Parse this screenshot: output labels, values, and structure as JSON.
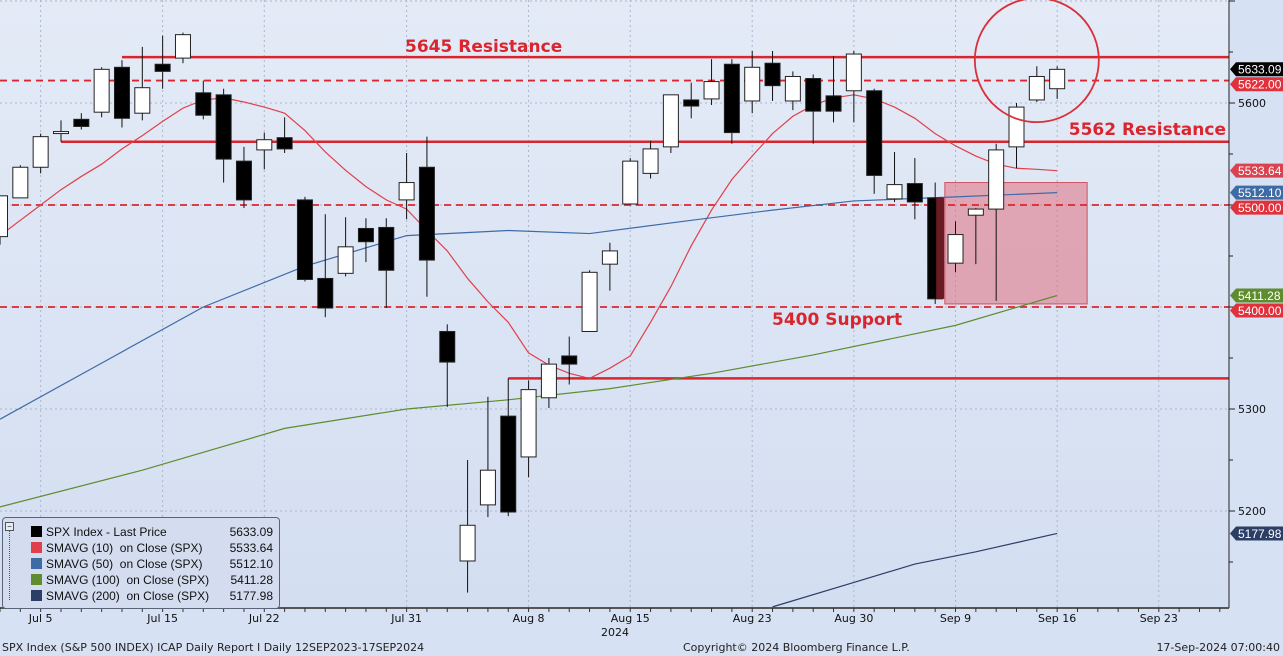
{
  "chart_data": {
    "type": "candlestick",
    "title": "",
    "ylim": [
      5100,
      5700
    ],
    "y_axis_side": "right",
    "y_ticks": [
      5200,
      5300,
      5600
    ],
    "grid": true,
    "x_tick_labels": [
      {
        "date": "Jul 5",
        "index": 2
      },
      {
        "date": "Jul 15",
        "index": 8
      },
      {
        "date": "Jul 22",
        "index": 13
      },
      {
        "date": "Jul 31",
        "index": 20
      },
      {
        "date": "Aug 8",
        "index": 26
      },
      {
        "date": "Aug 15",
        "index": 31
      },
      {
        "date": "Aug 23",
        "index": 37
      },
      {
        "date": "Aug 30",
        "index": 42
      },
      {
        "date": "Sep 9",
        "index": 47
      },
      {
        "date": "Sep 16",
        "index": 52
      },
      {
        "date": "Sep 23",
        "index": 57
      }
    ],
    "year_label": "2024",
    "candles": [
      [
        "Jul 2",
        5469,
        5509,
        5461,
        5509
      ],
      [
        "Jul 3",
        5507,
        5539,
        5507,
        5537
      ],
      [
        "Jul 5",
        5537,
        5570,
        5531,
        5567
      ],
      [
        "Jul 8",
        5572,
        5583,
        5562,
        5572
      ],
      [
        "Jul 9",
        5584,
        5590,
        5574,
        5577
      ],
      [
        "Jul 10",
        5591,
        5635,
        5586,
        5633
      ],
      [
        "Jul 11",
        5635,
        5642,
        5576,
        5585
      ],
      [
        "Jul 12",
        5590,
        5655,
        5583,
        5615
      ],
      [
        "Jul 15",
        5638,
        5666,
        5614,
        5631
      ],
      [
        "Jul 16",
        5644,
        5669,
        5639,
        5667
      ],
      [
        "Jul 17",
        5610,
        5622,
        5584,
        5588
      ],
      [
        "Jul 18",
        5608,
        5614,
        5522,
        5545
      ],
      [
        "Jul 19",
        5543,
        5557,
        5497,
        5505
      ],
      [
        "Jul 22",
        5554,
        5571,
        5535,
        5564
      ],
      [
        "Jul 23",
        5566,
        5586,
        5551,
        5555
      ],
      [
        "Jul 24",
        5505,
        5508,
        5425,
        5427
      ],
      [
        "Jul 25",
        5428,
        5491,
        5390,
        5399
      ],
      [
        "Jul 26",
        5433,
        5488,
        5430,
        5459
      ],
      [
        "Jul 29",
        5477,
        5487,
        5444,
        5464
      ],
      [
        "Jul 30",
        5478,
        5487,
        5399,
        5436
      ],
      [
        "Jul 31",
        5505,
        5551,
        5486,
        5522
      ],
      [
        "Aug 1",
        5537,
        5567,
        5410,
        5446
      ],
      [
        "Aug 2",
        5376,
        5383,
        5302,
        5346
      ],
      [
        "Aug 5",
        5151,
        5250,
        5120,
        5186
      ],
      [
        "Aug 6",
        5206,
        5312,
        5194,
        5240
      ],
      [
        "Aug 7",
        5293,
        5330,
        5195,
        5199
      ],
      [
        "Aug 8",
        5253,
        5328,
        5233,
        5319
      ],
      [
        "Aug 9",
        5311,
        5350,
        5301,
        5344
      ],
      [
        "Aug 12",
        5352,
        5371,
        5324,
        5344
      ],
      [
        "Aug 13",
        5376,
        5436,
        5376,
        5434
      ],
      [
        "Aug 14",
        5442,
        5463,
        5416,
        5455
      ],
      [
        "Aug 15",
        5501,
        5546,
        5501,
        5543
      ],
      [
        "Aug 16",
        5531,
        5563,
        5526,
        5555
      ],
      [
        "Aug 19",
        5557,
        5608,
        5551,
        5608
      ],
      [
        "Aug 20",
        5603,
        5620,
        5585,
        5597
      ],
      [
        "Aug 21",
        5604,
        5643,
        5598,
        5621
      ],
      [
        "Aug 22",
        5638,
        5643,
        5560,
        5571
      ],
      [
        "Aug 23",
        5602,
        5651,
        5590,
        5635
      ],
      [
        "Aug 26",
        5639,
        5651,
        5602,
        5617
      ],
      [
        "Aug 27",
        5602,
        5631,
        5593,
        5626
      ],
      [
        "Aug 28",
        5624,
        5628,
        5560,
        5592
      ],
      [
        "Aug 29",
        5607,
        5646,
        5581,
        5592
      ],
      [
        "Aug 30",
        5612,
        5651,
        5581,
        5648
      ],
      [
        "Sep 3",
        5612,
        5614,
        5511,
        5529
      ],
      [
        "Sep 4",
        5506,
        5552,
        5503,
        5520
      ],
      [
        "Sep 5",
        5521,
        5546,
        5486,
        5503
      ],
      [
        "Sep 6",
        5507,
        5522,
        5403,
        5408
      ],
      [
        "Sep 9",
        5443,
        5484,
        5434,
        5471
      ],
      [
        "Sep 10",
        5490,
        5497,
        5442,
        5496
      ],
      [
        "Sep 11",
        5496,
        5560,
        5406,
        5554
      ],
      [
        "Sep 12",
        5557,
        5600,
        5536,
        5596
      ],
      [
        "Sep 13",
        5603,
        5636,
        5601,
        5626
      ],
      [
        "Sep 16",
        5614,
        5636,
        5604,
        5633
      ]
    ],
    "candle_fields": [
      "date",
      "open",
      "high",
      "low",
      "close"
    ],
    "series": [
      {
        "name": "SPX Index - Last Price",
        "last": "5633.09",
        "color": "#000000"
      },
      {
        "name": "SMAVG (10)  on Close (SPX)",
        "last": "5533.64",
        "color": "#e0404a",
        "values": [
          5470,
          5485,
          5500,
          5515,
          5528,
          5540,
          5555,
          5568,
          5582,
          5595,
          5603,
          5605,
          5601,
          5596,
          5590,
          5573,
          5552,
          5534,
          5518,
          5505,
          5496,
          5475,
          5455,
          5428,
          5405,
          5385,
          5355,
          5343,
          5335,
          5330,
          5340,
          5352,
          5385,
          5420,
          5460,
          5495,
          5525,
          5548,
          5570,
          5587,
          5598,
          5605,
          5608,
          5604,
          5596,
          5585,
          5570,
          5558,
          5548,
          5540,
          5536,
          5535,
          5533.64
        ]
      },
      {
        "name": "SMAVG (50)  on Close (SPX)",
        "last": "5512.10",
        "color": "#3e6ba6",
        "points": [
          [
            0,
            5290
          ],
          [
            5,
            5345
          ],
          [
            10,
            5400
          ],
          [
            15,
            5440
          ],
          [
            20,
            5470
          ],
          [
            25,
            5475
          ],
          [
            29,
            5472
          ],
          [
            34,
            5485
          ],
          [
            38,
            5495
          ],
          [
            42,
            5504
          ],
          [
            47,
            5508
          ],
          [
            52,
            5512.1
          ]
        ]
      },
      {
        "name": "SMAVG (100)  on Close (SPX)",
        "last": "5411.28",
        "color": "#5f8c2e",
        "points": [
          [
            0,
            5204
          ],
          [
            7,
            5240
          ],
          [
            14,
            5281
          ],
          [
            20,
            5300
          ],
          [
            25,
            5309
          ],
          [
            30,
            5320
          ],
          [
            35,
            5335
          ],
          [
            40,
            5353
          ],
          [
            47,
            5382
          ],
          [
            52,
            5411.28
          ]
        ]
      },
      {
        "name": "SMAVG (200)  on Close (SPX)",
        "last": "5177.98",
        "color": "#2c3e66",
        "points": [
          [
            38,
            5106
          ],
          [
            42,
            5130
          ],
          [
            45,
            5148
          ],
          [
            48,
            5160
          ],
          [
            52,
            5177.98
          ]
        ]
      }
    ],
    "levels": [
      {
        "value": 5645,
        "style": "solid",
        "label": "5645 Resistance",
        "from_index": 6
      },
      {
        "value": 5622.0,
        "style": "dashed",
        "tag": "5622.00"
      },
      {
        "value": 5562,
        "style": "solid",
        "label": "5562 Resistance",
        "from_index": 3
      },
      {
        "value": 5500.0,
        "style": "dashed",
        "tag": "5500.00"
      },
      {
        "value": 5400.0,
        "style": "dashed",
        "tag": "5400.00",
        "label": "5400 Support"
      },
      {
        "value": 5330,
        "style": "solid",
        "from_index": 25
      }
    ],
    "price_tags": [
      {
        "text": "5633.09",
        "value": 5633.09,
        "color": "#000000"
      },
      {
        "text": "5622.00",
        "value": 5622.0,
        "color": "#e0323c"
      },
      {
        "text": "5533.64",
        "value": 5533.64,
        "color": "#d9434f"
      },
      {
        "text": "5512.10",
        "value": 5512.1,
        "color": "#3e6ba6"
      },
      {
        "text": "5500.00",
        "value": 5500.0,
        "color": "#e0323c"
      },
      {
        "text": "5411.28",
        "value": 5411.28,
        "color": "#5f8c2e"
      },
      {
        "text": "5400.00",
        "value": 5400.0,
        "color": "#e0323c"
      },
      {
        "text": "5177.98",
        "value": 5177.98,
        "color": "#2c3e66"
      }
    ],
    "highlight_zone": {
      "from_index": 46.5,
      "to_index": 53.5,
      "low": 5403,
      "high": 5522,
      "color": "#e07080"
    },
    "highlight_circle": {
      "center_index": 51,
      "center_value": 5642,
      "radius_points": 62,
      "color": "#d9303a"
    }
  },
  "footer": {
    "left": "SPX Index (S&P 500 INDEX) ICAP Daily Report I  Daily 12SEP2023-17SEP2024",
    "center": "Copyright© 2024 Bloomberg Finance L.P.",
    "right": "17-Sep-2024 07:00:40"
  }
}
